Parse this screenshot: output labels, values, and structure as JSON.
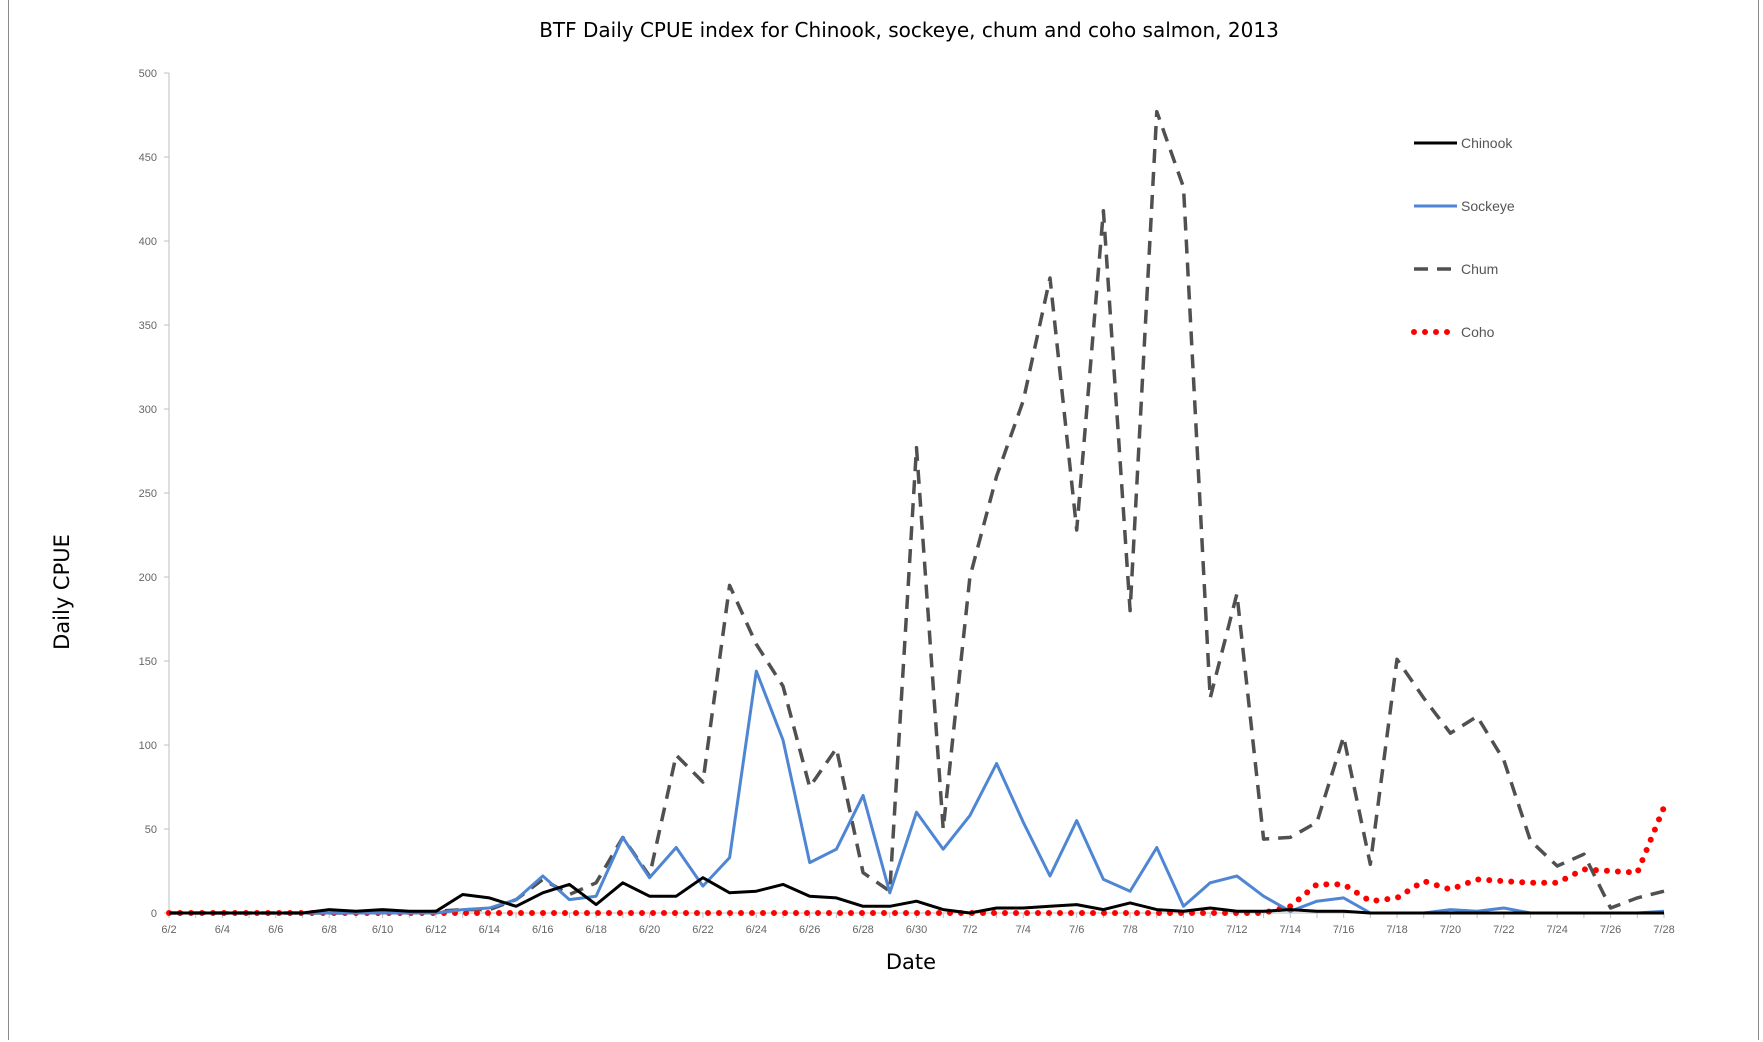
{
  "chart_data": {
    "type": "line",
    "title": "BTF Daily CPUE index for Chinook, sockeye, chum and coho salmon, 2013",
    "xlabel": "Date",
    "ylabel": "Daily CPUE",
    "ylim": [
      0,
      500
    ],
    "yticks": [
      0,
      50,
      100,
      150,
      200,
      250,
      300,
      350,
      400,
      450,
      500
    ],
    "x_tick_labels": [
      "6/2",
      "6/4",
      "6/6",
      "6/8",
      "6/10",
      "6/12",
      "6/14",
      "6/16",
      "6/18",
      "6/20",
      "6/22",
      "6/24",
      "6/26",
      "6/28",
      "6/30",
      "7/2",
      "7/4",
      "7/6",
      "7/8",
      "7/10",
      "7/12",
      "7/14",
      "7/16",
      "7/18",
      "7/20",
      "7/22",
      "7/24",
      "7/26",
      "7/28"
    ],
    "x": [
      "6/2",
      "6/3",
      "6/4",
      "6/5",
      "6/6",
      "6/7",
      "6/8",
      "6/9",
      "6/10",
      "6/11",
      "6/12",
      "6/13",
      "6/14",
      "6/15",
      "6/16",
      "6/17",
      "6/18",
      "6/19",
      "6/20",
      "6/21",
      "6/22",
      "6/23",
      "6/24",
      "6/25",
      "6/26",
      "6/27",
      "6/28",
      "6/29",
      "6/30",
      "7/1",
      "7/2",
      "7/3",
      "7/4",
      "7/5",
      "7/6",
      "7/7",
      "7/8",
      "7/9",
      "7/10",
      "7/11",
      "7/12",
      "7/13",
      "7/14",
      "7/15",
      "7/16",
      "7/17",
      "7/18",
      "7/19",
      "7/20",
      "7/21",
      "7/22",
      "7/23",
      "7/24",
      "7/25",
      "7/26",
      "7/27",
      "7/28"
    ],
    "grid": false,
    "legend_position": "top-right",
    "series": [
      {
        "name": "Chinook",
        "color": "#000000",
        "style": "solid",
        "values": [
          0,
          0,
          0,
          0,
          0,
          0,
          2,
          1,
          2,
          1,
          1,
          11,
          9,
          4,
          12,
          17,
          5,
          18,
          10,
          10,
          21,
          12,
          13,
          17,
          10,
          9,
          4,
          4,
          7,
          2,
          0,
          3,
          3,
          4,
          5,
          2,
          6,
          2,
          1,
          3,
          1,
          1,
          2,
          1,
          1,
          0,
          0,
          0,
          0,
          0,
          0,
          0,
          0,
          0,
          0,
          0,
          0
        ]
      },
      {
        "name": "Sockeye",
        "color": "#4f86d4",
        "style": "solid",
        "values": [
          0,
          0,
          0,
          0,
          0,
          0,
          0,
          0,
          0,
          0,
          0,
          2,
          3,
          8,
          22,
          8,
          10,
          45,
          21,
          39,
          16,
          33,
          144,
          103,
          30,
          38,
          70,
          12,
          60,
          38,
          58,
          89,
          54,
          22,
          55,
          20,
          13,
          39,
          4,
          18,
          22,
          10,
          1,
          7,
          9,
          0,
          0,
          0,
          2,
          1,
          3,
          0,
          0,
          0,
          0,
          0,
          1
        ]
      },
      {
        "name": "Chum",
        "color": "#505050",
        "style": "dashed",
        "values": [
          0,
          0,
          0,
          0,
          0,
          0,
          0,
          0,
          1,
          0,
          1,
          2,
          2,
          8,
          20,
          11,
          18,
          45,
          22,
          94,
          78,
          195,
          160,
          135,
          75,
          98,
          24,
          13,
          277,
          50,
          200,
          260,
          305,
          378,
          228,
          418,
          180,
          477,
          432,
          128,
          190,
          44,
          45,
          54,
          105,
          29,
          151,
          128,
          107,
          117,
          91,
          43,
          28,
          35,
          3,
          9,
          13
        ]
      },
      {
        "name": "Coho",
        "color": "#ff0000",
        "style": "dotted",
        "values": [
          0,
          0,
          0,
          0,
          0,
          0,
          0,
          0,
          0,
          0,
          0,
          0,
          0,
          0,
          0,
          0,
          0,
          0,
          0,
          0,
          0,
          0,
          0,
          0,
          0,
          0,
          0,
          0,
          0,
          0,
          0,
          0,
          0,
          0,
          0,
          0,
          0,
          0,
          0,
          0,
          0,
          0,
          4,
          17,
          17,
          7,
          9,
          19,
          14,
          20,
          19,
          18,
          18,
          26,
          25,
          24,
          63
        ]
      }
    ]
  }
}
